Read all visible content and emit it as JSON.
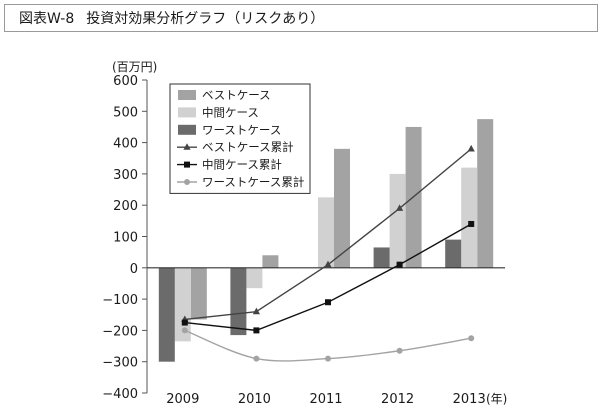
{
  "header": {
    "figure_number": "図表W-8",
    "title": "投資対効果分析グラフ（リスクあり）"
  },
  "chart_data": {
    "type": "bar",
    "title": "",
    "xlabel": "",
    "ylabel": "",
    "y_unit": "(百万円)",
    "x_unit": "(年)",
    "categories": [
      "2009",
      "2010",
      "2011",
      "2012",
      "2013"
    ],
    "ylim": [
      -400,
      600
    ],
    "yticks": [
      -400,
      -300,
      -200,
      -100,
      0,
      100,
      200,
      300,
      400,
      500,
      600
    ],
    "ytick_labels": [
      "−400",
      "−300",
      "−200",
      "−100",
      "0",
      "100",
      "200",
      "300",
      "400",
      "500",
      "600"
    ],
    "grid": false,
    "legend_position": "top-left",
    "series": [
      {
        "name": "ベストケース",
        "kind": "bar",
        "color": "#a3a3a3",
        "values": [
          -165,
          40,
          380,
          450,
          475
        ]
      },
      {
        "name": "中間ケース",
        "kind": "bar",
        "color": "#d1d1d1",
        "values": [
          -235,
          -65,
          225,
          300,
          320
        ]
      },
      {
        "name": "ワーストケース",
        "kind": "bar",
        "color": "#6b6b6b",
        "values": [
          -300,
          -215,
          0,
          65,
          90
        ]
      },
      {
        "name": "ベストケース累計",
        "kind": "line",
        "marker": "triangle",
        "color": "#444444",
        "values": [
          -165,
          -140,
          10,
          190,
          380
        ]
      },
      {
        "name": "中間ケース累計",
        "kind": "line",
        "marker": "square",
        "color": "#111111",
        "values": [
          -175,
          -200,
          -110,
          10,
          140
        ]
      },
      {
        "name": "ワーストケース累計",
        "kind": "line",
        "marker": "circle",
        "color": "#a3a3a3",
        "values": [
          -200,
          -290,
          -290,
          -265,
          -225
        ]
      }
    ]
  }
}
